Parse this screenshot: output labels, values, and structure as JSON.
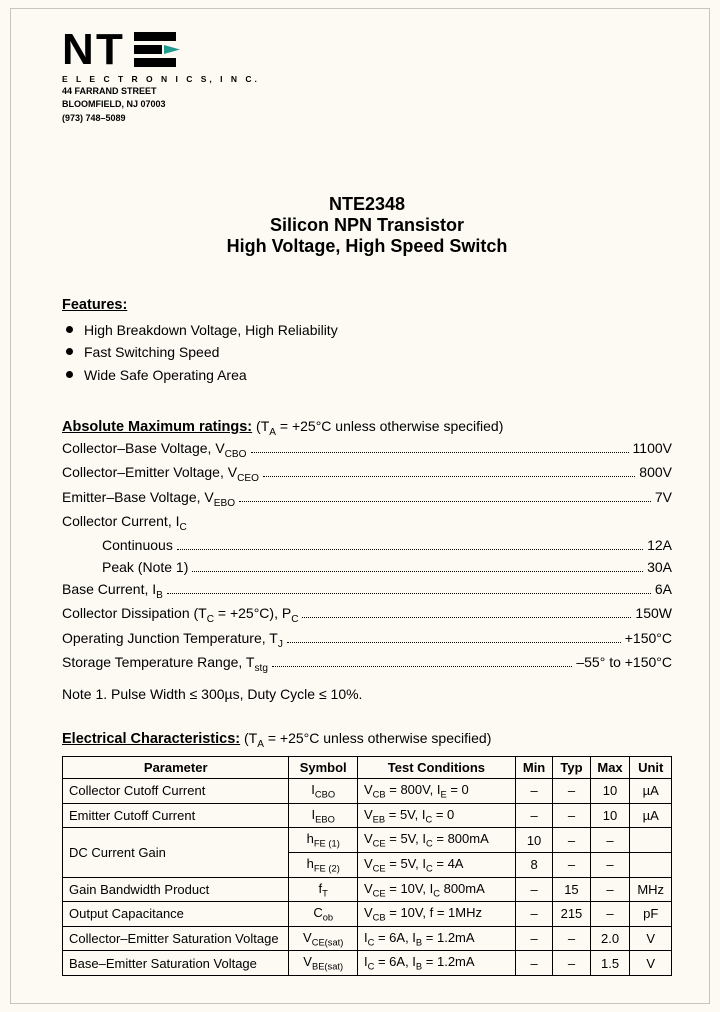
{
  "logo": {
    "company_sub": "E L E C T R O N I C S,  I N C.",
    "text_n": "N",
    "text_t": "T",
    "arrow_color": "#1e9b8e",
    "addr1": "44 FARRAND STREET",
    "addr2": "BLOOMFIELD,  NJ  07003",
    "addr3": "(973) 748–5089"
  },
  "title": {
    "l1": "NTE2348",
    "l2": "Silicon NPN Transistor",
    "l3": "High Voltage, High Speed Switch"
  },
  "features": {
    "head": "Features:",
    "items": [
      "High Breakdown Voltage, High Reliability",
      "Fast Switching Speed",
      "Wide Safe Operating Area"
    ]
  },
  "ratings": {
    "head": "Absolute Maximum ratings:",
    "cond": "  (T",
    "cond_sub": "A",
    "cond_rest": " = +25°C unless otherwise specified)",
    "lines": [
      {
        "lbl_html": "Collector–Base Voltage, V<sub>CBO</sub>",
        "val": "1100V",
        "indent": false
      },
      {
        "lbl_html": "Collector–Emitter Voltage, V<sub>CEO</sub>",
        "val": "800V",
        "indent": false
      },
      {
        "lbl_html": "Emitter–Base Voltage, V<sub>EBO</sub>",
        "val": "7V",
        "indent": false
      },
      {
        "lbl_html": "Collector Current, I<sub>C</sub>",
        "val": "",
        "indent": false,
        "nodots": true
      },
      {
        "lbl_html": "Continuous",
        "val": "12A",
        "indent": true
      },
      {
        "lbl_html": "Peak (Note 1)",
        "val": "30A",
        "indent": true
      },
      {
        "lbl_html": "Base Current, I<sub>B</sub>",
        "val": "6A",
        "indent": false
      },
      {
        "lbl_html": "Collector Dissipation (T<sub>C</sub> = +25°C), P<sub>C</sub>",
        "val": "150W",
        "indent": false
      },
      {
        "lbl_html": "Operating Junction Temperature, T<sub>J</sub>",
        "val": "+150°C",
        "indent": false
      },
      {
        "lbl_html": "Storage Temperature Range, T<sub>stg</sub>",
        "val": "–55° to +150°C",
        "indent": false
      }
    ],
    "note": "Note  1. Pulse Width ≤ 300µs, Duty Cycle ≤ 10%."
  },
  "elec": {
    "head": "Electrical Characteristics:",
    "cond": "  (T",
    "cond_sub": "A",
    "cond_rest": " = +25°C unless otherwise specified)",
    "headers": [
      "Parameter",
      "Symbol",
      "Test Conditions",
      "Min",
      "Typ",
      "Max",
      "Unit"
    ],
    "rows": [
      {
        "param": "Collector Cutoff Current",
        "sym": "I<sub>CBO</sub>",
        "cond": "V<sub>CB</sub> = 800V, I<sub>E</sub> = 0",
        "min": "–",
        "typ": "–",
        "max": "10",
        "unit": "µA"
      },
      {
        "param": "Emitter Cutoff Current",
        "sym": "I<sub>EBO</sub>",
        "cond": "V<sub>EB</sub> = 5V, I<sub>C</sub> = 0",
        "min": "–",
        "typ": "–",
        "max": "10",
        "unit": "µA"
      },
      {
        "param": "DC Current Gain",
        "sym": "h<sub>FE (1)</sub>",
        "cond": "V<sub>CE</sub> = 5V, I<sub>C</sub> = 800mA",
        "min": "10",
        "typ": "–",
        "max": "–",
        "unit": "",
        "rowspan": 2
      },
      {
        "param": "",
        "sym": "h<sub>FE (2)</sub>",
        "cond": "V<sub>CE</sub> = 5V, I<sub>C</sub> = 4A",
        "min": "8",
        "typ": "–",
        "max": "–",
        "unit": "",
        "skip_param": true
      },
      {
        "param": "Gain Bandwidth Product",
        "sym": "f<sub>T</sub>",
        "cond": "V<sub>CE</sub> = 10V, I<sub>C</sub>  800mA",
        "min": "–",
        "typ": "15",
        "max": "–",
        "unit": "MHz"
      },
      {
        "param": "Output Capacitance",
        "sym": "C<sub>ob</sub>",
        "cond": "V<sub>CB</sub> = 10V, f = 1MHz",
        "min": "–",
        "typ": "215",
        "max": "–",
        "unit": "pF"
      },
      {
        "param": "Collector–Emitter Saturation Voltage",
        "sym": "V<sub>CE(sat)</sub>",
        "cond": "I<sub>C</sub> = 6A, I<sub>B</sub> = 1.2mA",
        "min": "–",
        "typ": "–",
        "max": "2.0",
        "unit": "V"
      },
      {
        "param": "Base–Emitter Saturation Voltage",
        "sym": "V<sub>BE(sat)</sub>",
        "cond": "I<sub>C</sub> = 6A, I<sub>B</sub> = 1.2mA",
        "min": "–",
        "typ": "–",
        "max": "1.5",
        "unit": "V"
      }
    ],
    "col_widths": [
      "218px",
      "66px",
      "152px",
      "36px",
      "36px",
      "36px",
      "40px"
    ]
  }
}
